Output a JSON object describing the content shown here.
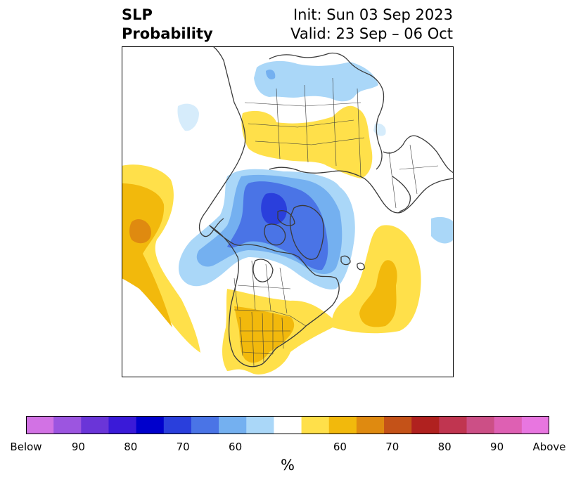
{
  "title": {
    "line1": "SLP",
    "line2": "Probability",
    "init": "Init: Sun 03 Sep 2023",
    "valid": "Valid: 23 Sep – 06 Oct"
  },
  "colorbar": {
    "unit": "%",
    "colors": [
      "#d272e4",
      "#9c55e0",
      "#6a35d8",
      "#3a1ad8",
      "#0000cc",
      "#2a3fdc",
      "#4a74e6",
      "#74b0f0",
      "#aad7f8",
      "#ffffff",
      "#ffe04a",
      "#f2b90c",
      "#df8a10",
      "#c45218",
      "#b0211f",
      "#c03550",
      "#cc4f86",
      "#de60b3",
      "#e876e0"
    ],
    "labels": [
      "Below",
      "90",
      "80",
      "70",
      "60",
      "60",
      "70",
      "80",
      "90",
      "Above"
    ]
  },
  "map_colors": {
    "above_60": "#ffe04a",
    "above_65": "#f2b90c",
    "above_70": "#df8a10",
    "below_55": "#d6ecfb",
    "below_60": "#aad7f8",
    "below_65": "#74b0f0",
    "below_70": "#4a74e6",
    "below_75": "#2a3fdc",
    "coast": "#3a3a3a"
  }
}
